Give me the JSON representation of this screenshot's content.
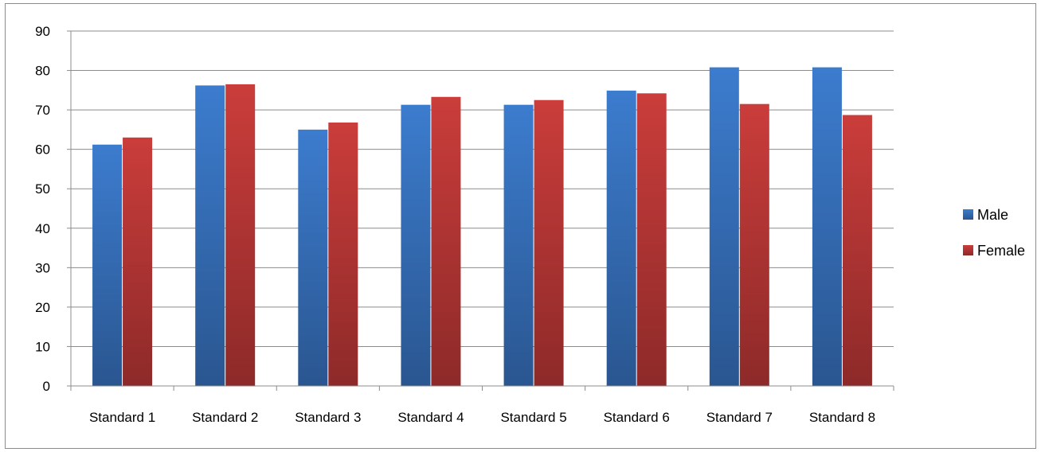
{
  "chart_data": {
    "type": "bar",
    "title": "",
    "xlabel": "",
    "ylabel": "",
    "categories": [
      "Standard 1",
      "Standard 2",
      "Standard 3",
      "Standard 4",
      "Standard 5",
      "Standard 6",
      "Standard 7",
      "Standard 8"
    ],
    "series": [
      {
        "name": "Male",
        "values": [
          61.2,
          76.2,
          65.0,
          71.3,
          71.3,
          74.9,
          80.8,
          80.8
        ],
        "color": "#3a78c8"
      },
      {
        "name": "Female",
        "values": [
          63.0,
          76.5,
          66.8,
          73.3,
          72.5,
          74.2,
          71.5,
          68.7
        ],
        "color": "#c43b39"
      }
    ],
    "ylim": [
      0,
      90
    ],
    "yticks": [
      0,
      10,
      20,
      30,
      40,
      50,
      60,
      70,
      80,
      90
    ],
    "grid": true,
    "legend": "right"
  }
}
